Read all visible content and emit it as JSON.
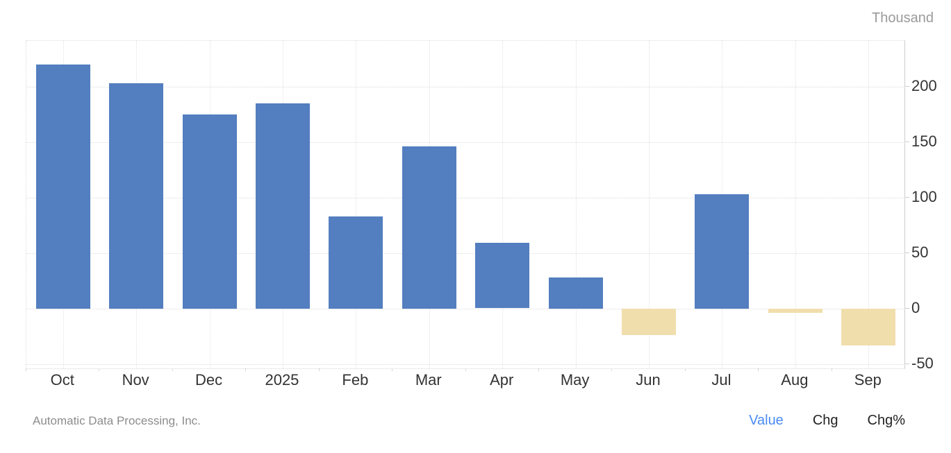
{
  "chart": {
    "unit_label": "Thousand",
    "plot": {
      "grid_color": "#dcdcdc",
      "axis_color": "#cccccc",
      "label_color": "#333333"
    }
  },
  "chart_data": {
    "type": "bar",
    "title": "",
    "xlabel": "",
    "ylabel": "Thousand",
    "categories": [
      "Oct",
      "Nov",
      "Dec",
      "2025",
      "Feb",
      "Mar",
      "Apr",
      "May",
      "Jun",
      "Jul",
      "Aug",
      "Sep"
    ],
    "values": [
      220,
      203,
      175,
      185,
      83,
      146,
      59,
      28,
      -24,
      103,
      -4,
      -33
    ],
    "yticks": [
      200,
      150,
      100,
      50,
      0,
      -50
    ],
    "ylim": [
      -54,
      241
    ],
    "grid": true,
    "legend_position": "none",
    "positive_color": "#537EBF",
    "negative_color": "#F1DEAD"
  },
  "footer": {
    "source": "Automatic Data Processing, Inc.",
    "links": [
      {
        "label": "Value",
        "active": true
      },
      {
        "label": "Chg",
        "active": false
      },
      {
        "label": "Chg%",
        "active": false
      }
    ],
    "active_color": "#4a8bf5",
    "inactive_color": "#222222"
  }
}
